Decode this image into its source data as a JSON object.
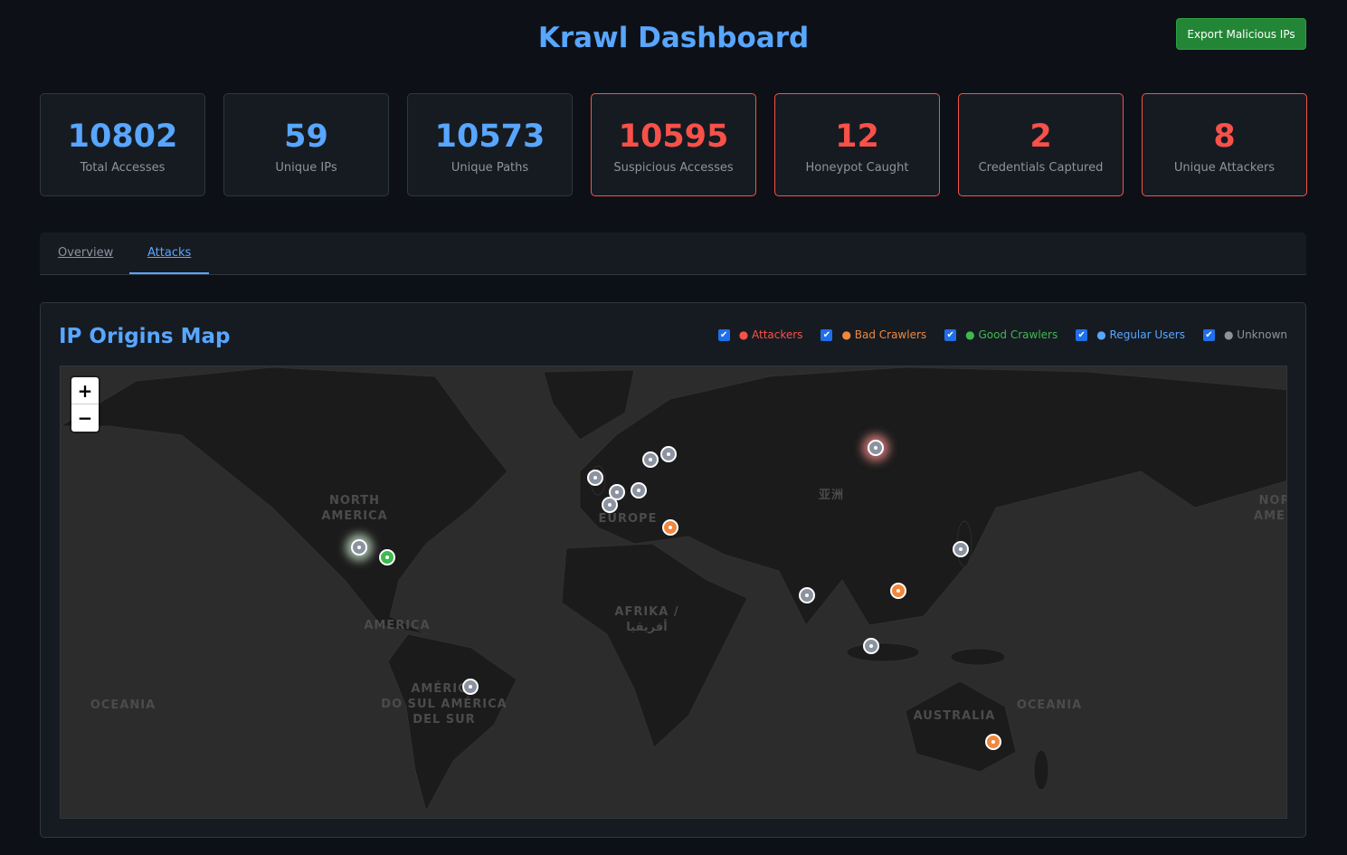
{
  "header": {
    "title": "Krawl Dashboard",
    "export_label": "Export Malicious IPs"
  },
  "stats": [
    {
      "value": "10802",
      "label": "Total Accesses"
    },
    {
      "value": "59",
      "label": "Unique IPs"
    },
    {
      "value": "10573",
      "label": "Unique Paths"
    },
    {
      "value": "10595",
      "label": "Suspicious Accesses"
    },
    {
      "value": "12",
      "label": "Honeypot Caught"
    },
    {
      "value": "2",
      "label": "Credentials Captured"
    },
    {
      "value": "8",
      "label": "Unique Attackers"
    }
  ],
  "tabs": [
    {
      "label": "Overview",
      "active": false
    },
    {
      "label": "Attacks",
      "active": true
    }
  ],
  "map": {
    "title": "IP Origins Map",
    "legend": [
      {
        "label": "Attackers",
        "color": "#f85149",
        "checked": true
      },
      {
        "label": "Bad Crawlers",
        "color": "#f0883e",
        "checked": true
      },
      {
        "label": "Good Crawlers",
        "color": "#3fb950",
        "checked": true
      },
      {
        "label": "Regular Users",
        "color": "#58a6ff",
        "checked": true
      },
      {
        "label": "Unknown",
        "color": "#8b949e",
        "checked": true
      }
    ],
    "zoom_in": "+",
    "zoom_out": "−",
    "labels": {
      "na": "NORTH\nAMERICA",
      "eu": "EUROPE",
      "asia": "亚洲",
      "af": "AFRIKA /\nأفريقيا",
      "am": "AMERICA",
      "sa": "AMÉRICA\nDO SUL AMÉRICA\nDEL SUR",
      "oc1": "OCEANIA",
      "oc2": "OCEANIA",
      "au": "AUSTRALIA",
      "na2": "NOR\nAMER"
    },
    "marker_colors": {
      "unknown": "#8b93a0",
      "bad": "#f0883e",
      "good": "#3fb950"
    },
    "markers": [
      "unknown",
      "good",
      "unknown",
      "unknown",
      "unknown",
      "unknown",
      "unknown",
      "unknown",
      "bad",
      "unknown",
      "unknown",
      "bad",
      "unknown",
      "unknown",
      "unknown",
      "bad"
    ]
  }
}
